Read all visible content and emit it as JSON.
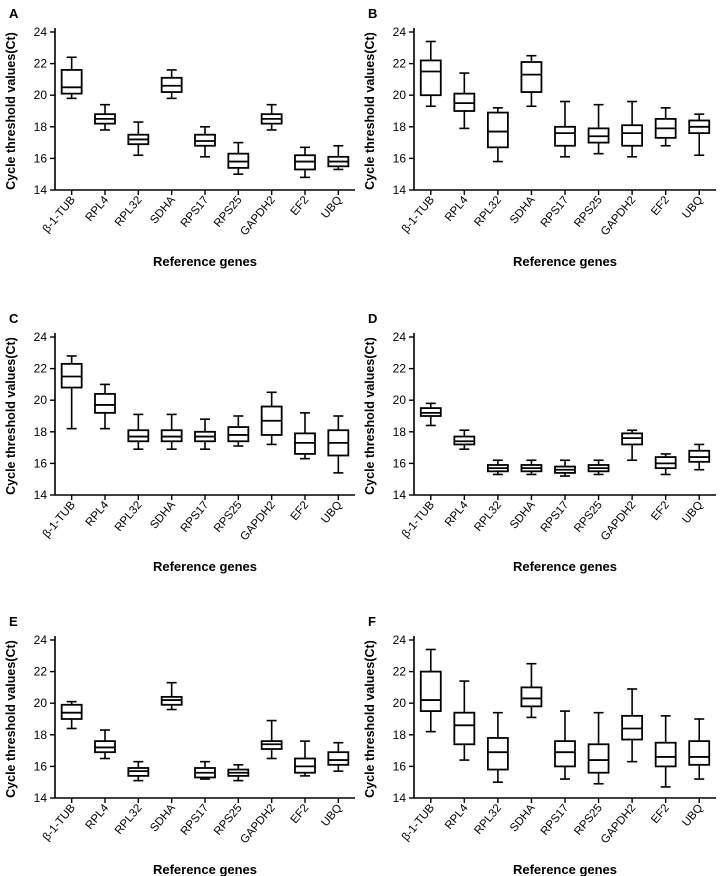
{
  "chart_data": [
    {
      "type": "box",
      "panel_label": "A",
      "ylabel": "Cycle threshold values(Ct)",
      "xlabel": "Reference genes",
      "ylim": [
        14,
        24
      ],
      "yticks": [
        "14",
        "16",
        "18",
        "20",
        "22",
        "24"
      ],
      "categories": [
        "β-1-TUB",
        "RPL4",
        "RPL32",
        "SDHA",
        "RPS17",
        "RPS25",
        "GAPDH2",
        "EF2",
        "UBQ"
      ],
      "boxes": [
        {
          "min": 19.8,
          "q1": 20.1,
          "median": 20.5,
          "q3": 21.6,
          "max": 22.4
        },
        {
          "min": 17.8,
          "q1": 18.2,
          "median": 18.5,
          "q3": 18.8,
          "max": 19.4
        },
        {
          "min": 16.2,
          "q1": 16.9,
          "median": 17.2,
          "q3": 17.5,
          "max": 18.3
        },
        {
          "min": 19.8,
          "q1": 20.2,
          "median": 20.6,
          "q3": 21.1,
          "max": 21.6
        },
        {
          "min": 16.1,
          "q1": 16.8,
          "median": 17.1,
          "q3": 17.5,
          "max": 18.0
        },
        {
          "min": 15.0,
          "q1": 15.4,
          "median": 15.8,
          "q3": 16.3,
          "max": 17.0
        },
        {
          "min": 17.8,
          "q1": 18.2,
          "median": 18.5,
          "q3": 18.8,
          "max": 19.4
        },
        {
          "min": 14.8,
          "q1": 15.3,
          "median": 15.8,
          "q3": 16.2,
          "max": 16.7
        },
        {
          "min": 15.3,
          "q1": 15.5,
          "median": 15.8,
          "q3": 16.1,
          "max": 16.8
        }
      ]
    },
    {
      "type": "box",
      "panel_label": "B",
      "ylabel": "Cycle threshold values(Ct)",
      "xlabel": "Reference genes",
      "ylim": [
        14,
        24
      ],
      "yticks": [
        "14",
        "16",
        "18",
        "20",
        "22",
        "24"
      ],
      "categories": [
        "β-1-TUB",
        "RPL4",
        "RPL32",
        "SDHA",
        "RPS17",
        "RPS25",
        "GAPDH2",
        "EF2",
        "UBQ"
      ],
      "boxes": [
        {
          "min": 19.3,
          "q1": 20.0,
          "median": 21.5,
          "q3": 22.2,
          "max": 23.4
        },
        {
          "min": 17.9,
          "q1": 19.0,
          "median": 19.5,
          "q3": 20.1,
          "max": 21.4
        },
        {
          "min": 15.8,
          "q1": 16.7,
          "median": 17.7,
          "q3": 18.9,
          "max": 19.2
        },
        {
          "min": 19.3,
          "q1": 20.2,
          "median": 21.3,
          "q3": 22.1,
          "max": 22.5
        },
        {
          "min": 16.1,
          "q1": 16.8,
          "median": 17.6,
          "q3": 18.0,
          "max": 19.6
        },
        {
          "min": 16.3,
          "q1": 17.0,
          "median": 17.4,
          "q3": 17.9,
          "max": 19.4
        },
        {
          "min": 16.1,
          "q1": 16.8,
          "median": 17.6,
          "q3": 18.1,
          "max": 19.6
        },
        {
          "min": 16.8,
          "q1": 17.3,
          "median": 17.9,
          "q3": 18.5,
          "max": 19.2
        },
        {
          "min": 16.2,
          "q1": 17.6,
          "median": 18.0,
          "q3": 18.4,
          "max": 18.8
        }
      ]
    },
    {
      "type": "box",
      "panel_label": "C",
      "ylabel": "Cycle threshold values(Ct)",
      "xlabel": "Reference genes",
      "ylim": [
        14,
        24
      ],
      "yticks": [
        "14",
        "16",
        "18",
        "20",
        "22",
        "24"
      ],
      "categories": [
        "β-1-TUB",
        "RPL4",
        "RPL32",
        "SDHA",
        "RPS17",
        "RPS25",
        "GAPDH2",
        "EF2",
        "UBQ"
      ],
      "boxes": [
        {
          "min": 18.2,
          "q1": 20.8,
          "median": 21.5,
          "q3": 22.3,
          "max": 22.8
        },
        {
          "min": 18.2,
          "q1": 19.2,
          "median": 19.7,
          "q3": 20.4,
          "max": 21.0
        },
        {
          "min": 16.9,
          "q1": 17.4,
          "median": 17.7,
          "q3": 18.1,
          "max": 19.1
        },
        {
          "min": 16.9,
          "q1": 17.4,
          "median": 17.7,
          "q3": 18.1,
          "max": 19.1
        },
        {
          "min": 16.9,
          "q1": 17.4,
          "median": 17.7,
          "q3": 18.0,
          "max": 18.8
        },
        {
          "min": 17.1,
          "q1": 17.4,
          "median": 17.8,
          "q3": 18.3,
          "max": 19.0
        },
        {
          "min": 17.2,
          "q1": 17.8,
          "median": 18.7,
          "q3": 19.6,
          "max": 20.5
        },
        {
          "min": 16.3,
          "q1": 16.6,
          "median": 17.3,
          "q3": 17.9,
          "max": 19.2
        },
        {
          "min": 15.4,
          "q1": 16.5,
          "median": 17.3,
          "q3": 18.1,
          "max": 19.0
        }
      ]
    },
    {
      "type": "box",
      "panel_label": "D",
      "ylabel": "Cycle threshold values(Ct)",
      "xlabel": "Reference genes",
      "ylim": [
        14,
        24
      ],
      "yticks": [
        "14",
        "16",
        "18",
        "20",
        "22",
        "24"
      ],
      "categories": [
        "β-1-TUB",
        "RPL4",
        "RPL32",
        "SDHA",
        "RPS17",
        "RPS25",
        "GAPDH2",
        "EF2",
        "UBQ"
      ],
      "boxes": [
        {
          "min": 18.4,
          "q1": 19.0,
          "median": 19.2,
          "q3": 19.5,
          "max": 19.8
        },
        {
          "min": 16.9,
          "q1": 17.2,
          "median": 17.4,
          "q3": 17.7,
          "max": 18.1
        },
        {
          "min": 15.3,
          "q1": 15.5,
          "median": 15.7,
          "q3": 15.9,
          "max": 16.2
        },
        {
          "min": 15.3,
          "q1": 15.5,
          "median": 15.7,
          "q3": 15.9,
          "max": 16.2
        },
        {
          "min": 15.2,
          "q1": 15.4,
          "median": 15.6,
          "q3": 15.8,
          "max": 16.2
        },
        {
          "min": 15.3,
          "q1": 15.5,
          "median": 15.7,
          "q3": 15.9,
          "max": 16.2
        },
        {
          "min": 16.2,
          "q1": 17.2,
          "median": 17.6,
          "q3": 17.9,
          "max": 18.1
        },
        {
          "min": 15.3,
          "q1": 15.7,
          "median": 16.0,
          "q3": 16.4,
          "max": 16.6
        },
        {
          "min": 15.6,
          "q1": 16.1,
          "median": 16.4,
          "q3": 16.8,
          "max": 17.2
        }
      ]
    },
    {
      "type": "box",
      "panel_label": "E",
      "ylabel": "Cycle threshold values(Ct)",
      "xlabel": "Reference genes",
      "ylim": [
        14,
        24
      ],
      "yticks": [
        "14",
        "16",
        "18",
        "20",
        "22",
        "24"
      ],
      "categories": [
        "β-1-TUB",
        "RPL4",
        "RPL32",
        "SDHA",
        "RPS17",
        "RPS25",
        "GAPDH2",
        "EF2",
        "UBQ"
      ],
      "boxes": [
        {
          "min": 18.4,
          "q1": 19.0,
          "median": 19.4,
          "q3": 19.9,
          "max": 20.1
        },
        {
          "min": 16.5,
          "q1": 16.9,
          "median": 17.2,
          "q3": 17.6,
          "max": 18.3
        },
        {
          "min": 15.1,
          "q1": 15.4,
          "median": 15.7,
          "q3": 15.9,
          "max": 16.3
        },
        {
          "min": 19.6,
          "q1": 19.9,
          "median": 20.2,
          "q3": 20.4,
          "max": 21.3
        },
        {
          "min": 15.2,
          "q1": 15.3,
          "median": 15.6,
          "q3": 15.9,
          "max": 16.3
        },
        {
          "min": 15.1,
          "q1": 15.4,
          "median": 15.6,
          "q3": 15.8,
          "max": 16.1
        },
        {
          "min": 16.5,
          "q1": 17.1,
          "median": 17.4,
          "q3": 17.6,
          "max": 18.9
        },
        {
          "min": 15.4,
          "q1": 15.6,
          "median": 16.0,
          "q3": 16.5,
          "max": 17.6
        },
        {
          "min": 15.7,
          "q1": 16.1,
          "median": 16.4,
          "q3": 16.9,
          "max": 17.5
        }
      ]
    },
    {
      "type": "box",
      "panel_label": "F",
      "ylabel": "Cycle threshold values(Ct)",
      "xlabel": "Reference genes",
      "ylim": [
        14,
        24
      ],
      "yticks": [
        "14",
        "16",
        "18",
        "20",
        "22",
        "24"
      ],
      "categories": [
        "β-1-TUB",
        "RPL4",
        "RPL32",
        "SDHA",
        "RPS17",
        "RPS25",
        "GAPDH2",
        "EF2",
        "UBQ"
      ],
      "boxes": [
        {
          "min": 18.2,
          "q1": 19.5,
          "median": 20.2,
          "q3": 22.0,
          "max": 23.4
        },
        {
          "min": 16.4,
          "q1": 17.4,
          "median": 18.6,
          "q3": 19.4,
          "max": 21.4
        },
        {
          "min": 15.0,
          "q1": 15.8,
          "median": 16.9,
          "q3": 17.8,
          "max": 19.4
        },
        {
          "min": 19.1,
          "q1": 19.8,
          "median": 20.3,
          "q3": 21.0,
          "max": 22.5
        },
        {
          "min": 15.2,
          "q1": 16.0,
          "median": 16.9,
          "q3": 17.6,
          "max": 19.5
        },
        {
          "min": 14.9,
          "q1": 15.6,
          "median": 16.4,
          "q3": 17.4,
          "max": 19.4
        },
        {
          "min": 16.3,
          "q1": 17.7,
          "median": 18.4,
          "q3": 19.2,
          "max": 20.9
        },
        {
          "min": 14.7,
          "q1": 16.0,
          "median": 16.6,
          "q3": 17.5,
          "max": 19.2
        },
        {
          "min": 15.2,
          "q1": 16.1,
          "median": 16.6,
          "q3": 17.6,
          "max": 19.0
        }
      ]
    }
  ]
}
